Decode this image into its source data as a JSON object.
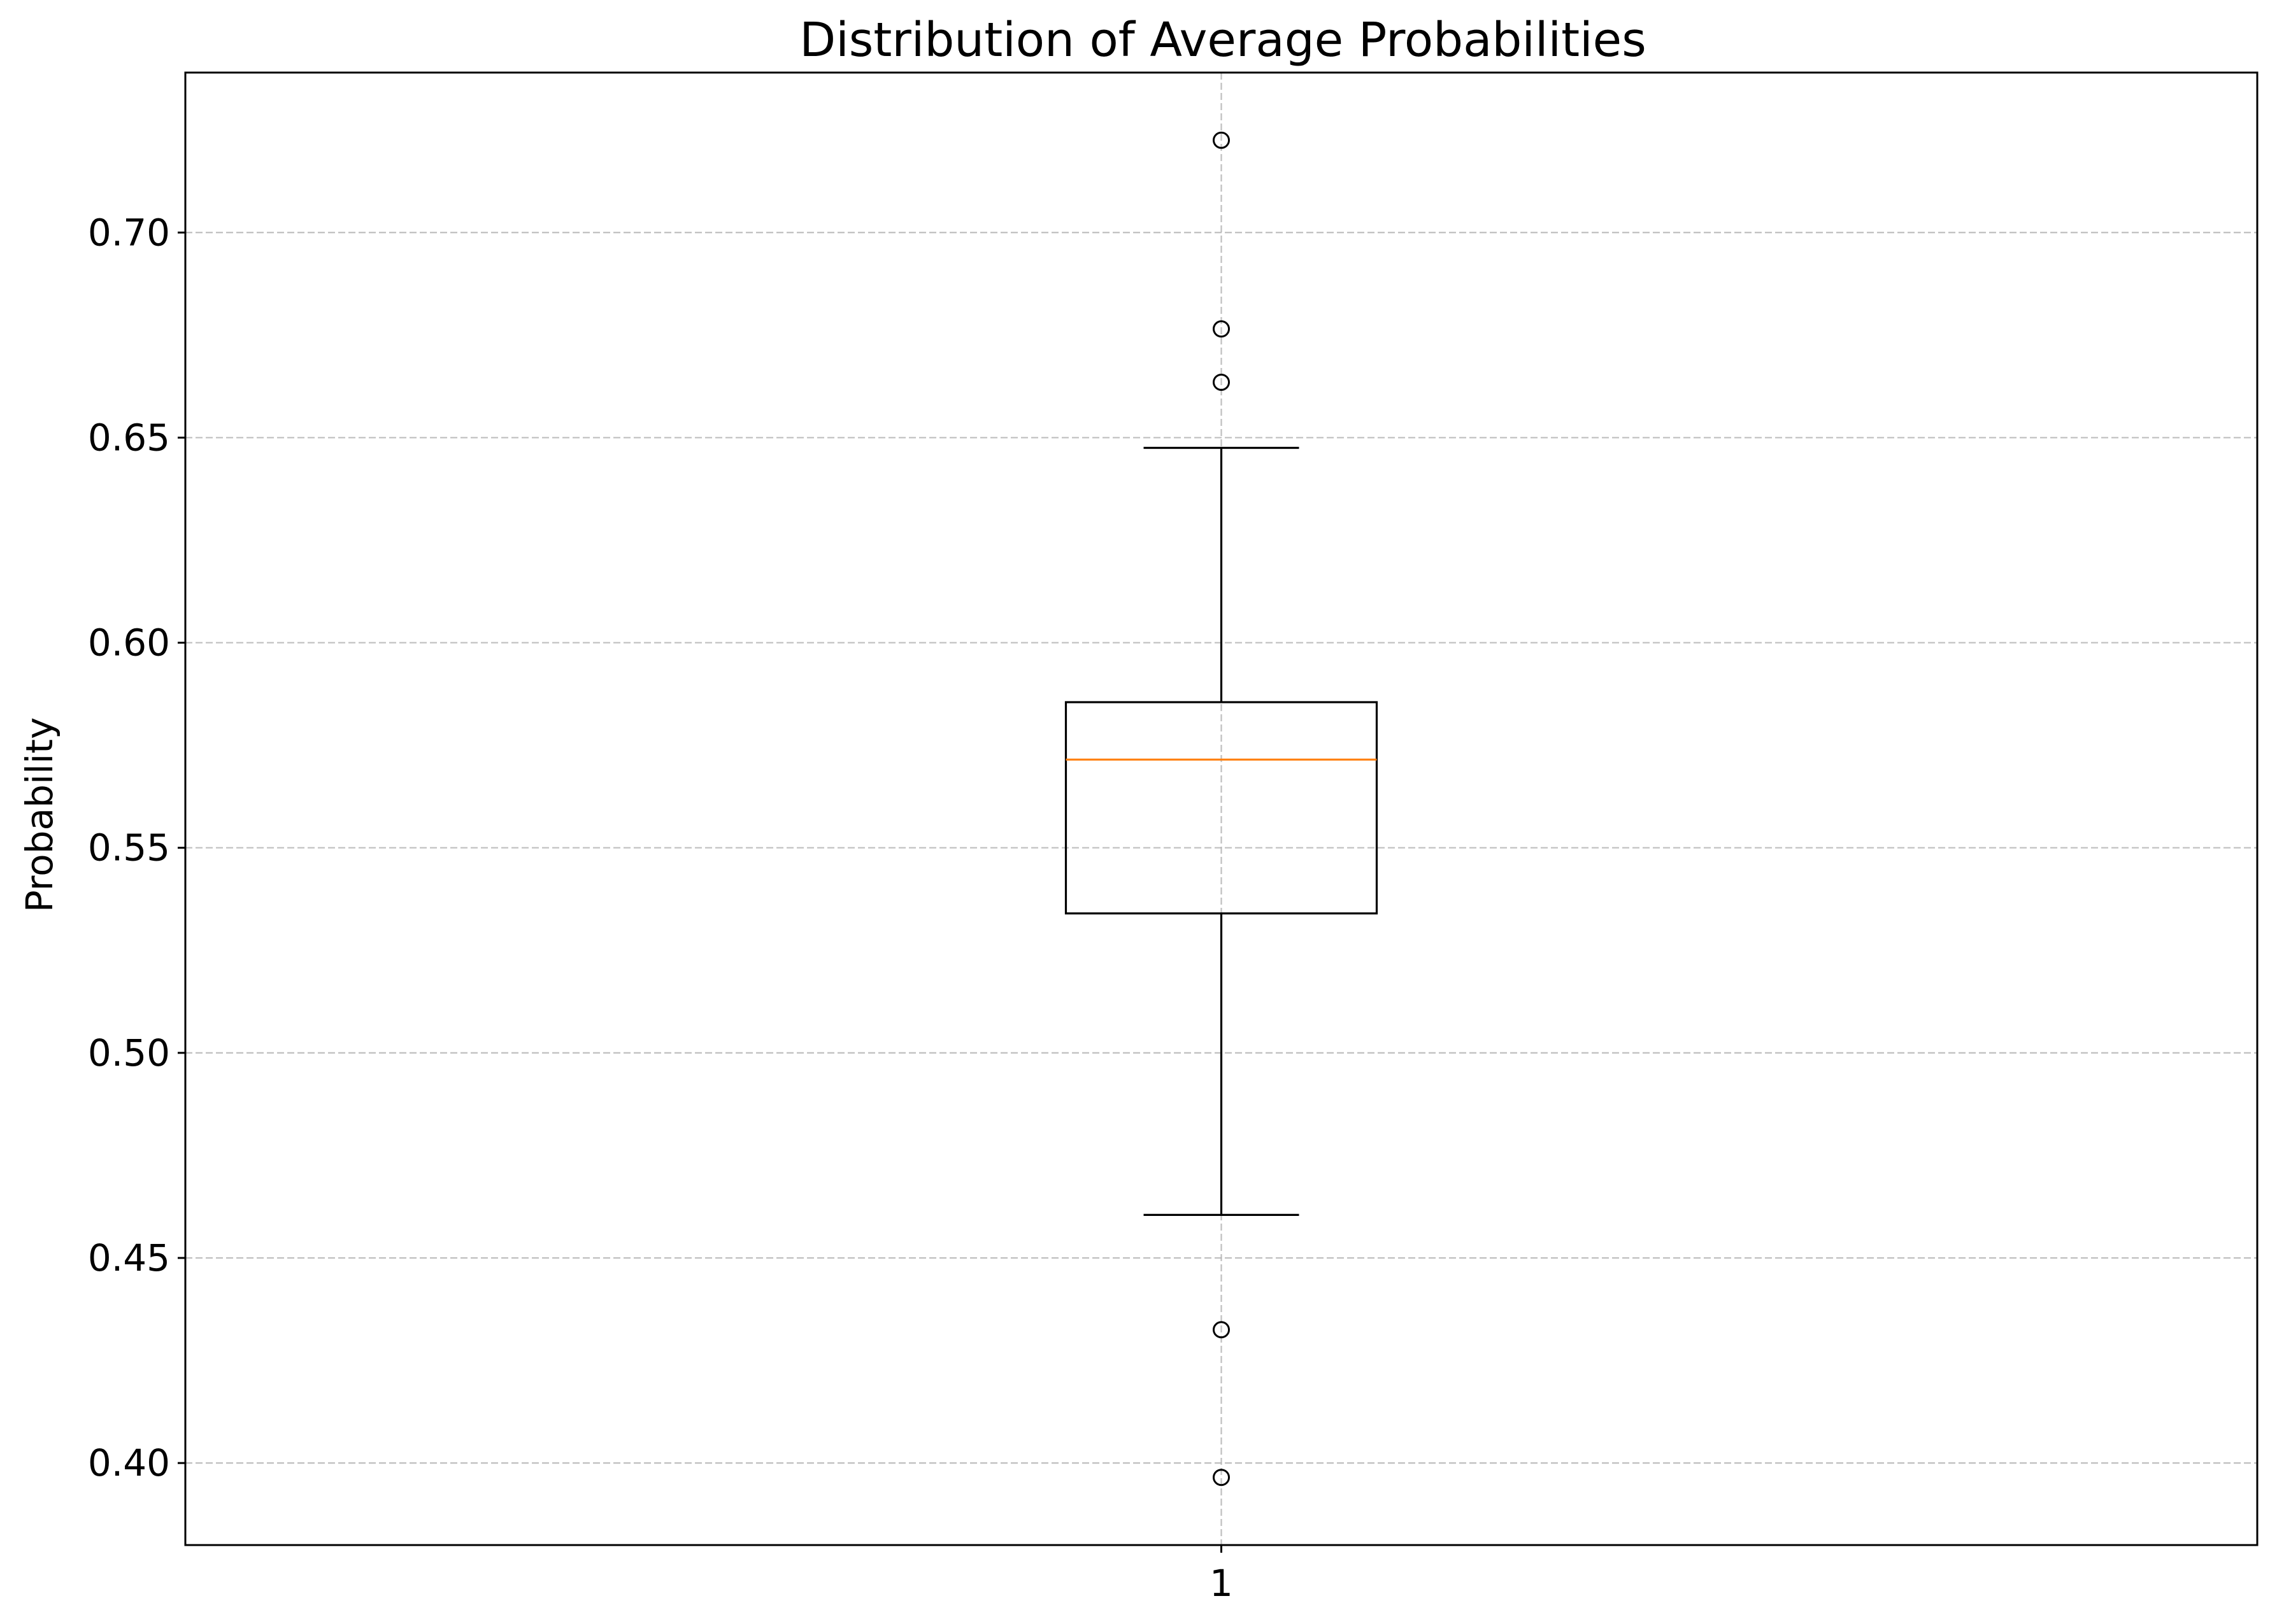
{
  "chart_data": {
    "type": "box",
    "title": "Distribution of Average Probabilities",
    "xlabel": "",
    "ylabel": "Probability",
    "ylim": [
      0.38,
      0.739
    ],
    "y_ticks": [
      0.4,
      0.45,
      0.5,
      0.55,
      0.6,
      0.65,
      0.7
    ],
    "y_tick_labels": [
      "0.40",
      "0.45",
      "0.50",
      "0.55",
      "0.60",
      "0.65",
      "0.70"
    ],
    "x_tick_labels": [
      "1"
    ],
    "grid": true,
    "boxes": [
      {
        "position": 1,
        "whisker_low": 0.4605,
        "q1": 0.534,
        "median": 0.5715,
        "q3": 0.5855,
        "whisker_high": 0.6475,
        "fliers": [
          0.7225,
          0.6765,
          0.6635,
          0.4325,
          0.3965
        ]
      }
    ],
    "colors": {
      "box": "#000000",
      "median": "#ff7f0e",
      "grid": "#b0b0b0"
    }
  }
}
